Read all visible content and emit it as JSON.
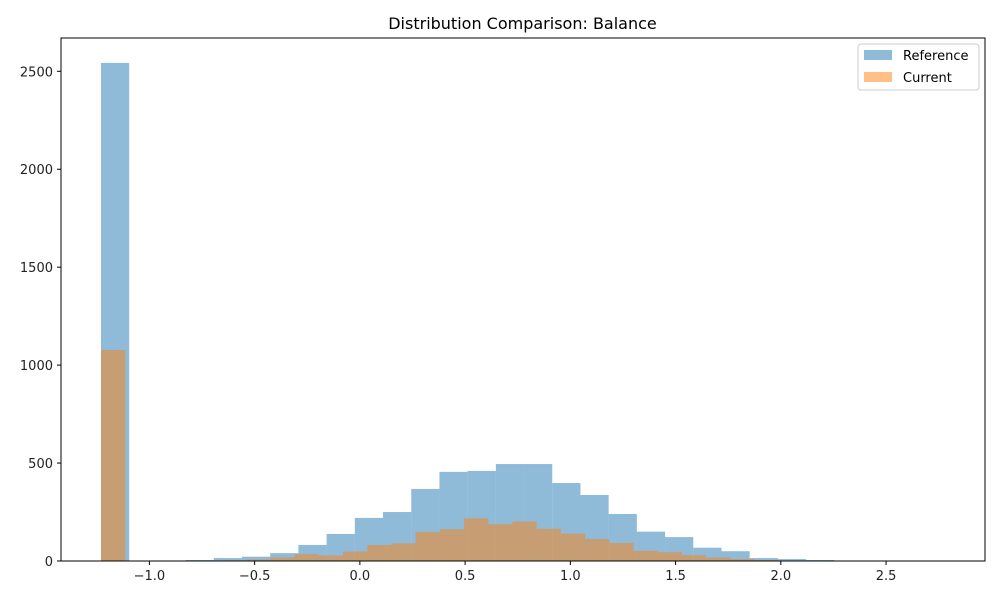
{
  "chart_data": {
    "type": "bar",
    "title": "Distribution Comparison: Balance",
    "xlabel": "",
    "ylabel": "",
    "xlim": [
      -1.42,
      2.97
    ],
    "ylim": [
      0,
      2670
    ],
    "grid": false,
    "legend_position": "top-right",
    "x_ticks": [
      -1.0,
      -0.5,
      0.0,
      0.5,
      1.0,
      1.5,
      2.0,
      2.5
    ],
    "x_tick_labels": [
      "−1.0",
      "−0.5",
      "0.0",
      "0.5",
      "1.0",
      "1.5",
      "2.0",
      "2.5"
    ],
    "y_ticks": [
      0,
      500,
      1000,
      1500,
      2000,
      2500
    ],
    "y_tick_labels": [
      "0",
      "500",
      "1000",
      "1500",
      "2000",
      "2500"
    ],
    "series": [
      {
        "name": "Reference",
        "color": "#1f77b4",
        "opacity": 0.5,
        "bin_edges": [
          -1.23,
          -1.096,
          -0.962,
          -0.828,
          -0.694,
          -0.56,
          -0.426,
          -0.292,
          -0.158,
          -0.024,
          0.11,
          0.244,
          0.378,
          0.512,
          0.646,
          0.78,
          0.914,
          1.048,
          1.182,
          1.316,
          1.45,
          1.584,
          1.718,
          1.852,
          1.986,
          2.12,
          2.254,
          2.388,
          2.522,
          2.656,
          2.79
        ],
        "counts": [
          2543,
          2,
          2,
          5,
          15,
          22,
          40,
          82,
          138,
          220,
          250,
          368,
          455,
          460,
          495,
          495,
          398,
          337,
          240,
          150,
          122,
          68,
          50,
          15,
          10,
          5,
          2,
          1,
          1,
          1
        ]
      },
      {
        "name": "Current",
        "color": "#ff7f0e",
        "opacity": 0.5,
        "bin_edges": [
          -1.23,
          -1.115,
          -1.0,
          -0.885,
          -0.77,
          -0.655,
          -0.54,
          -0.425,
          -0.31,
          -0.195,
          -0.08,
          0.035,
          0.15,
          0.265,
          0.38,
          0.495,
          0.61,
          0.725,
          0.84,
          0.955,
          1.07,
          1.185,
          1.3,
          1.415,
          1.53,
          1.645,
          1.76,
          1.875,
          1.99,
          2.105,
          2.22
        ],
        "counts": [
          1077,
          0,
          0,
          0,
          2,
          4,
          8,
          18,
          35,
          28,
          48,
          82,
          90,
          148,
          162,
          218,
          188,
          202,
          165,
          140,
          112,
          92,
          52,
          45,
          30,
          18,
          10,
          5,
          2,
          1
        ]
      }
    ]
  }
}
